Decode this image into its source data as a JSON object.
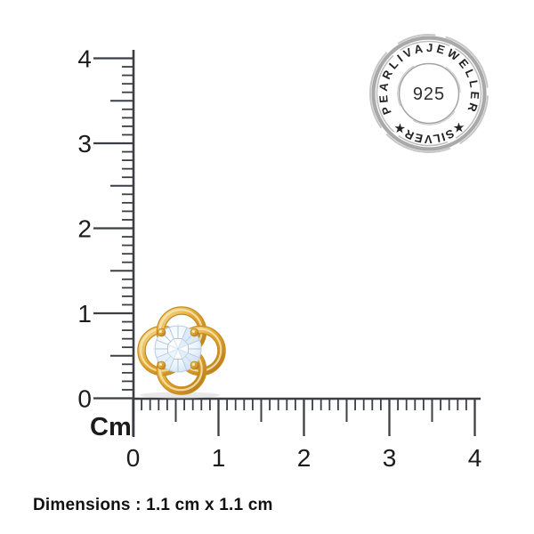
{
  "ruler": {
    "unit_label": "Cm",
    "vertical_numbers": [
      "0",
      "1",
      "2",
      "3",
      "4"
    ],
    "horizontal_numbers": [
      "0",
      "1",
      "2",
      "3",
      "4"
    ]
  },
  "stamp": {
    "top_arc_text": "PEARLIVAJEWELLER",
    "bottom_arc_text": "★SILVER★",
    "center_text": "925"
  },
  "earring": {
    "icon": "gold-knot-stud-earring-with-round-diamond"
  },
  "caption": {
    "text": "Dimensions : 1.1 cm x 1.1 cm"
  },
  "colors": {
    "ruler_line": "#3b3f45",
    "number_text": "#1c1c1c",
    "gold_light": "#f9e6ae",
    "gold_mid": "#e2a835",
    "gold_dark": "#b5791b",
    "gold_edge": "#c88c1e",
    "diamond_tint": "#d7e7f6",
    "stamp_gray": "#a9a9a9",
    "stamp_text": "#222222",
    "caption_text": "#111111"
  }
}
